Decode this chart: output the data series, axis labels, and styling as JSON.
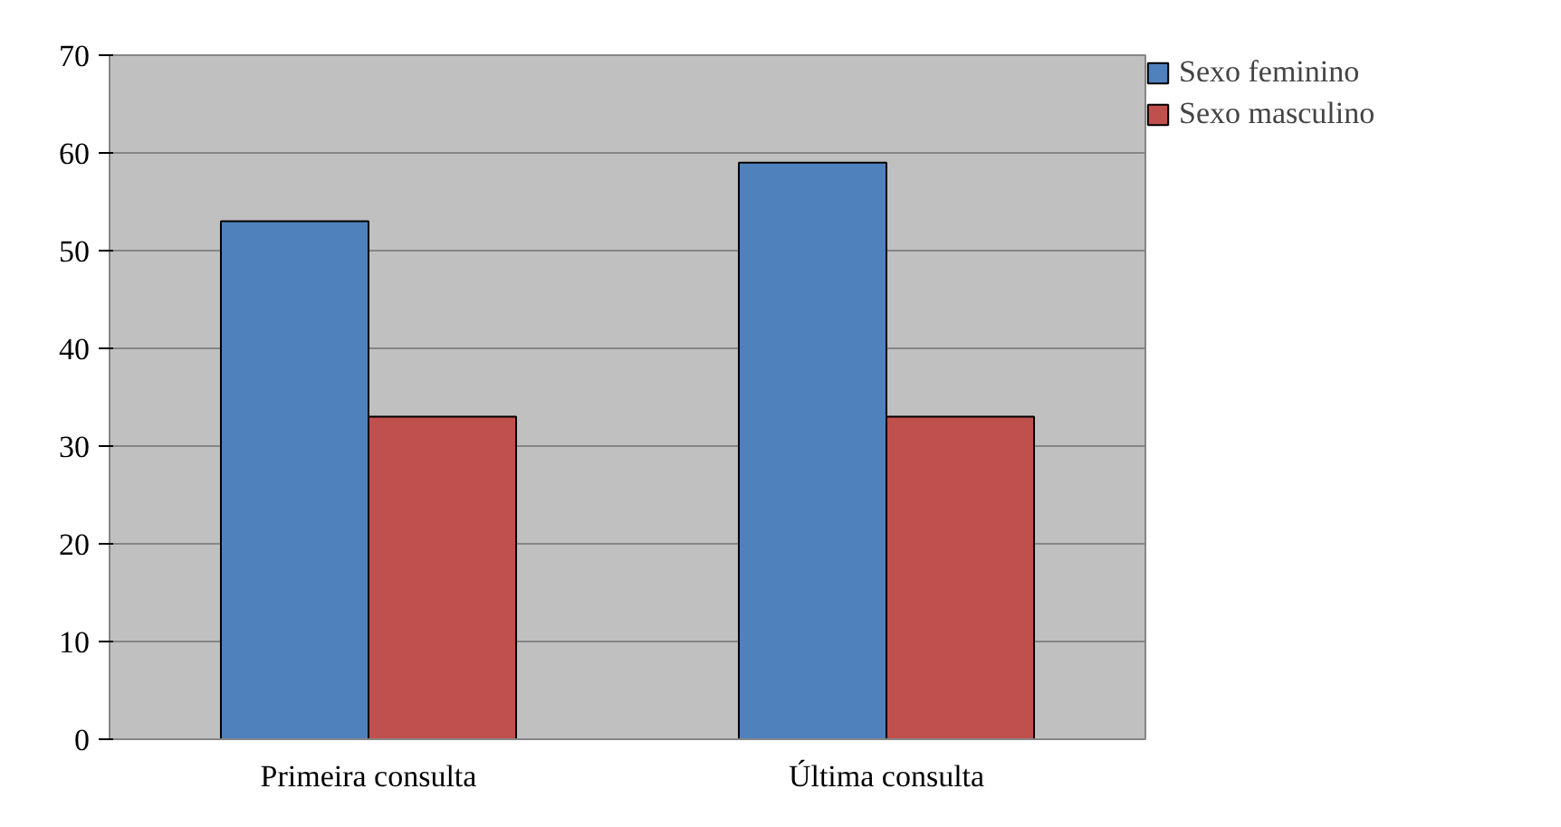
{
  "chart_data": {
    "type": "bar",
    "categories": [
      "Primeira consulta",
      "Última consulta"
    ],
    "series": [
      {
        "name": "Sexo feminino",
        "color": "#4f81bd",
        "values": [
          53,
          59
        ]
      },
      {
        "name": "Sexo masculino",
        "color": "#c0504d",
        "values": [
          33,
          33
        ]
      }
    ],
    "ylim": [
      0,
      70
    ],
    "yticks": [
      0,
      10,
      20,
      30,
      40,
      50,
      60,
      70
    ],
    "grid": "y",
    "legend": "right"
  }
}
